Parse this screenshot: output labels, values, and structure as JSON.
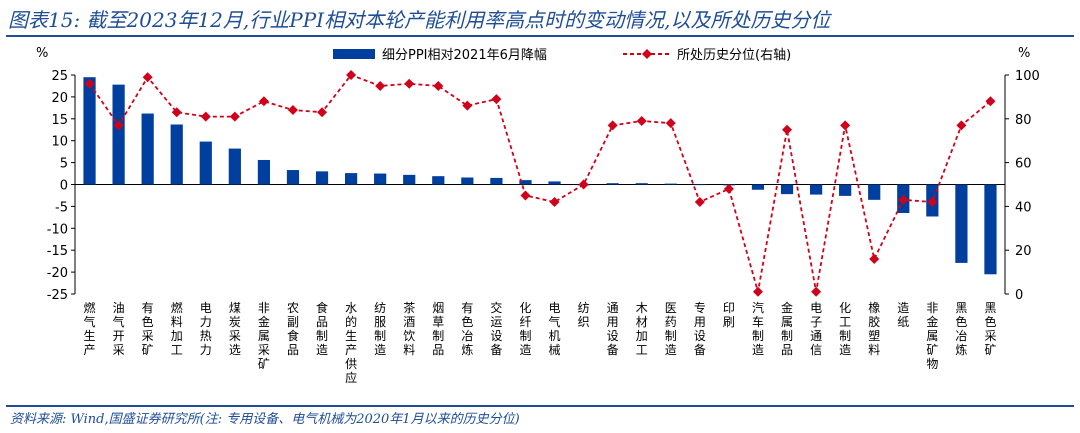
{
  "header": {
    "title": "图表15: 截至2023年12月,行业PPI相对本轮产能利用率高点时的变动情况,以及所处历史分位"
  },
  "footer": {
    "source": "资料来源: Wind,国盛证券研究所(注: 专用设备、电气机械为2020年1月以来的历史分位)"
  },
  "colors": {
    "bar": "#003f9e",
    "line": "#d0021b",
    "title": "#1f4e96"
  },
  "chart_data": {
    "type": "bar+line",
    "left_unit": "%",
    "right_unit": "%",
    "left_ylim": [
      -25,
      25
    ],
    "right_ylim": [
      0,
      100
    ],
    "left_ticks": [
      25,
      20,
      15,
      10,
      5,
      0,
      -5,
      -10,
      -15,
      -20,
      -25
    ],
    "right_ticks": [
      100,
      80,
      60,
      40,
      20,
      0
    ],
    "categories": [
      "燃气生产",
      "油气开采",
      "有色采矿",
      "燃料加工",
      "电力热力",
      "煤炭采选",
      "非金属采矿",
      "农副食品",
      "食品制造",
      "水的生产供应",
      "纺服制造",
      "茶酒饮料",
      "烟草制品",
      "有色冶炼",
      "交运设备",
      "化纤制造",
      "电气机械",
      "纺织",
      "通用设备",
      "木材加工",
      "医药制造",
      "专用设备",
      "印刷",
      "汽车制造",
      "金属制品",
      "电子通信",
      "化工制造",
      "橡胶塑料",
      "造纸",
      "非金属矿物",
      "黑色冶炼",
      "黑色采矿"
    ],
    "series": [
      {
        "name": "细分PPI相对2021年6月降幅",
        "axis": "left",
        "type": "bar",
        "values": [
          24.5,
          22.8,
          16.2,
          13.7,
          9.8,
          8.2,
          5.6,
          3.3,
          3.0,
          2.6,
          2.5,
          2.2,
          1.9,
          1.6,
          1.5,
          1.0,
          0.7,
          -0.2,
          0.3,
          0.3,
          0.2,
          -0.1,
          -0.2,
          -1.2,
          -2.2,
          -2.3,
          -2.6,
          -3.5,
          -6.5,
          -7.3,
          -17.9,
          -20.5
        ]
      },
      {
        "name": "所处历史分位(右轴)",
        "axis": "right",
        "type": "line",
        "values": [
          96,
          77,
          99,
          83,
          81,
          81,
          88,
          84,
          83,
          100,
          95,
          96,
          95,
          86,
          89,
          45,
          42,
          50,
          77,
          79,
          78,
          42,
          48,
          1,
          75,
          1,
          77,
          16,
          43,
          42,
          77,
          88
        ]
      }
    ]
  }
}
